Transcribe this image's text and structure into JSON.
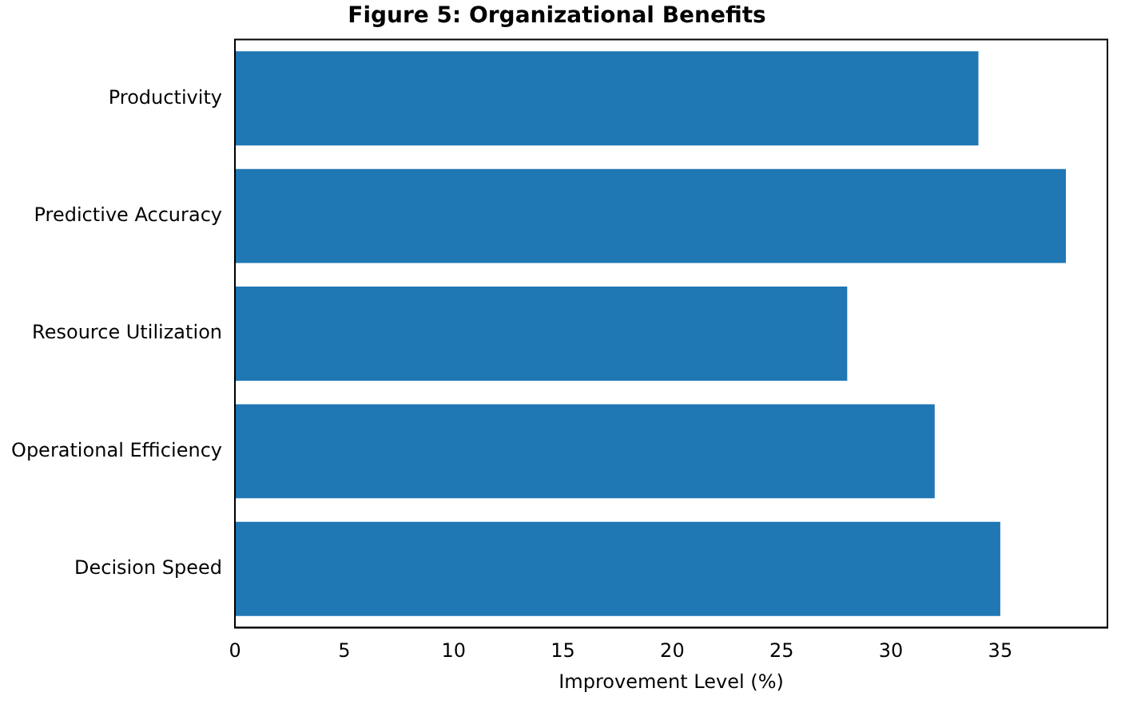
{
  "chart_data": {
    "type": "bar",
    "orientation": "horizontal",
    "title": "Figure 5: Organizational Benefits",
    "xlabel": "Improvement Level (%)",
    "categories": [
      "Productivity",
      "Predictive Accuracy",
      "Resource Utilization",
      "Operational Efficiency",
      "Decision Speed"
    ],
    "values": [
      34,
      38,
      28,
      32,
      35
    ],
    "color": "#1f77b4",
    "xlim": [
      0,
      39.9
    ],
    "xticks": [
      0,
      5,
      10,
      15,
      20,
      25,
      30,
      35
    ],
    "grid": false,
    "legend": false
  }
}
